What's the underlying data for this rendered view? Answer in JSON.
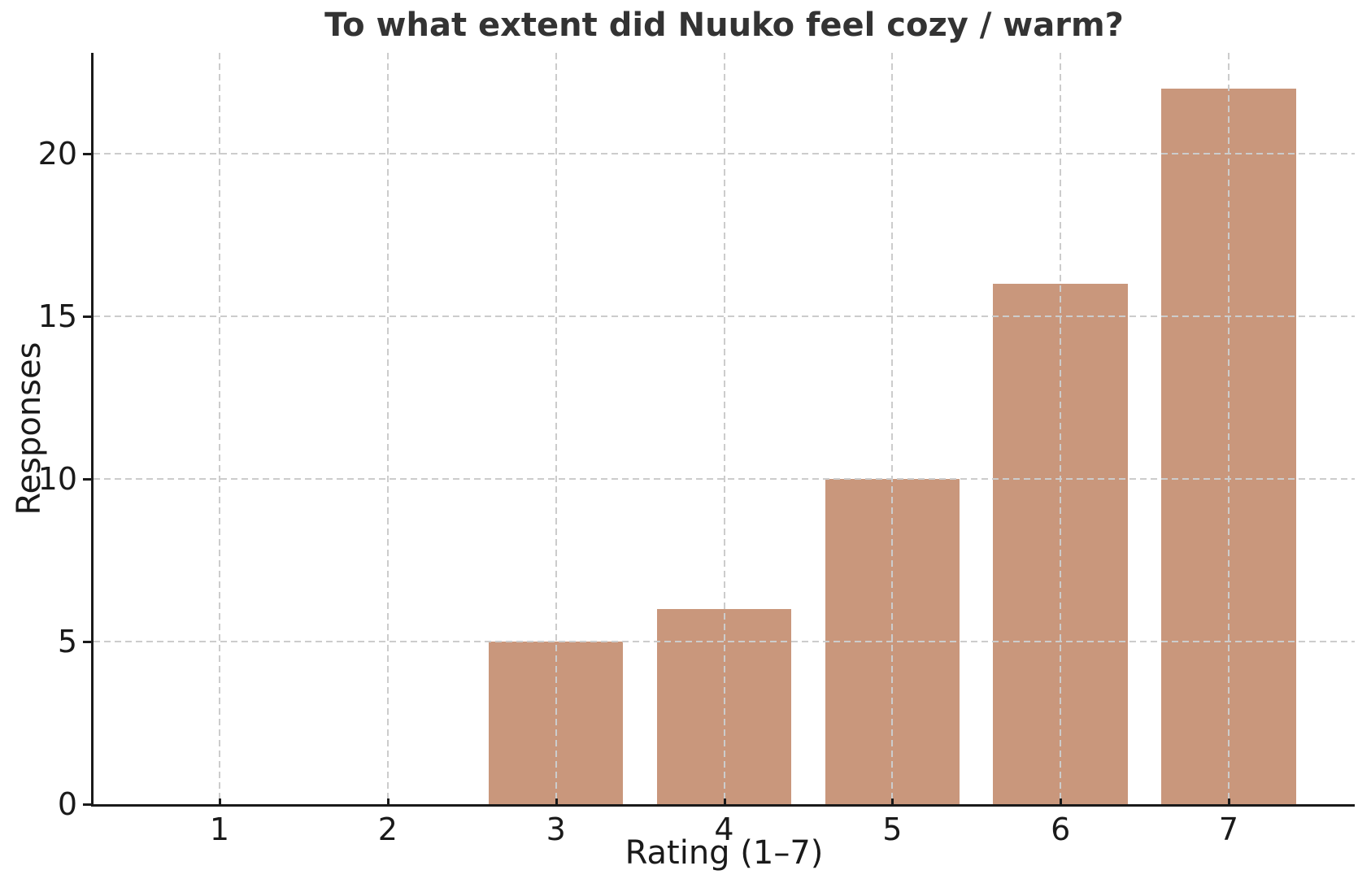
{
  "chart_data": {
    "type": "bar",
    "title": "To what extent did Nuuko feel cozy / warm?",
    "xlabel": "Rating (1–7)",
    "ylabel": "Responses",
    "categories": [
      "1",
      "2",
      "3",
      "4",
      "5",
      "6",
      "7"
    ],
    "values": [
      0,
      0,
      5,
      6,
      10,
      16,
      22
    ],
    "yticks": [
      0,
      5,
      10,
      15,
      20
    ],
    "ylim": [
      0,
      23.1
    ],
    "bar_width_fraction": 0.8,
    "grid": "dashed horizontal and vertical gridlines, drawn above bars",
    "legend_position": "none",
    "colors": {
      "bar": "#c9977c",
      "grid": "#cccccc",
      "axis": "#1a1a1a",
      "title": "#333333"
    }
  }
}
